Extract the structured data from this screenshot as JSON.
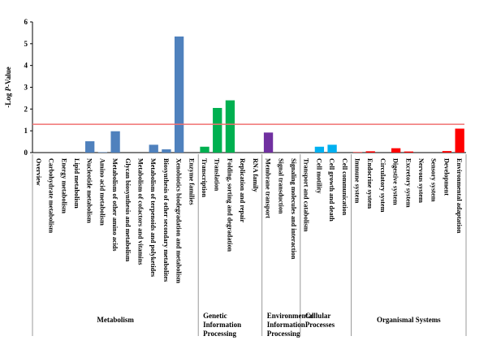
{
  "chart_data": {
    "type": "bar",
    "ylabel": "-Log P-Value",
    "ylim": [
      0,
      6
    ],
    "yticks": [
      "0",
      "1",
      "2",
      "3",
      "4",
      "5",
      "6"
    ],
    "threshold": {
      "value": 1.3,
      "color": "#f07070"
    },
    "categories": [
      "Overview",
      "Carbohydrate metabolism",
      "Energy metabolism",
      "Lipid metabolism",
      "Nucleotide metabolism",
      "Amino acid metabolism",
      "Metabolism of other amino acids",
      "Glycan biosynthesis and metabolism",
      "Metabolism of cofactors and vitamins",
      "Metabolism of terpenoids and polyketides",
      "Biosynthesis of other secondary metabolites",
      "Xenobiotics biodegradation and metabolism",
      "Enzyme families",
      "Transcription",
      "Translation",
      "Folding, sorting and degradation",
      "Replication and repair",
      "RNA family",
      "Membrane transport",
      "Signal transduction",
      "Signaling molecules and interaction",
      "Transport and catabolism",
      "Cell motility",
      "Cell growth and death",
      "Cell communication",
      "Immune system",
      "Endocrine system",
      "Circulatory system",
      "Digestive system",
      "Excretory system",
      "Nervous system",
      "Sensory system",
      "Development",
      "Environmental adaptation"
    ],
    "values": [
      0,
      0,
      0,
      0,
      0.52,
      0.02,
      0.98,
      0,
      0,
      0.36,
      0.15,
      5.33,
      0,
      0.27,
      2.05,
      2.4,
      0,
      0,
      0.92,
      0,
      0,
      0,
      0.27,
      0.36,
      0,
      0.02,
      0.06,
      0,
      0.2,
      0.05,
      0,
      0,
      0.07,
      1.1
    ],
    "colors": [
      "#4f81bd",
      "#4f81bd",
      "#4f81bd",
      "#4f81bd",
      "#4f81bd",
      "#4f81bd",
      "#4f81bd",
      "#4f81bd",
      "#4f81bd",
      "#4f81bd",
      "#4f81bd",
      "#4f81bd",
      "#4f81bd",
      "#00b050",
      "#00b050",
      "#00b050",
      "#00b050",
      "#00b050",
      "#7030a0",
      "#7030a0",
      "#7030a0",
      "#00b0f0",
      "#00b0f0",
      "#00b0f0",
      "#00b0f0",
      "#ff0000",
      "#ff0000",
      "#ff0000",
      "#ff0000",
      "#ff0000",
      "#ff0000",
      "#ff0000",
      "#ff0000",
      "#ff0000"
    ],
    "groups": [
      {
        "label": [
          "Metabolism"
        ],
        "start": 0,
        "end": 12
      },
      {
        "label": [
          "Genetic",
          "Information",
          "Processing"
        ],
        "start": 13,
        "end": 17
      },
      {
        "label": [
          "Environmental",
          "Information",
          "Processing"
        ],
        "start": 18,
        "end": 20
      },
      {
        "label": [
          "Cellular",
          "Processes"
        ],
        "start": 21,
        "end": 24
      },
      {
        "label": [
          "Organismal Systems"
        ],
        "start": 25,
        "end": 33
      }
    ]
  }
}
